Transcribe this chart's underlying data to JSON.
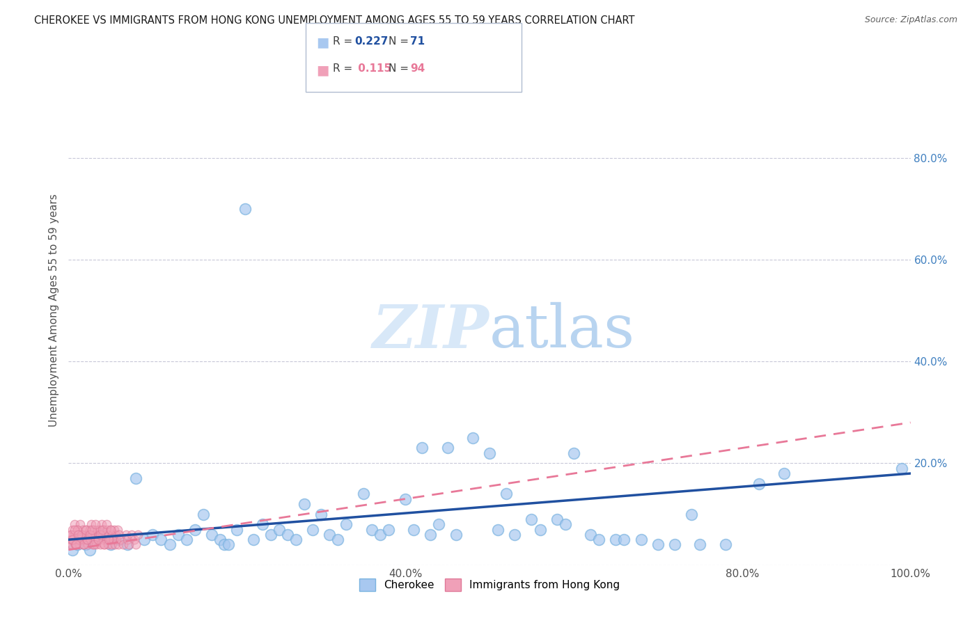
{
  "title": "CHEROKEE VS IMMIGRANTS FROM HONG KONG UNEMPLOYMENT AMONG AGES 55 TO 59 YEARS CORRELATION CHART",
  "source": "Source: ZipAtlas.com",
  "ylabel": "Unemployment Among Ages 55 to 59 years",
  "xlim": [
    0.0,
    1.0
  ],
  "ylim": [
    0.0,
    1.0
  ],
  "xticks": [
    0.0,
    0.2,
    0.4,
    0.6,
    0.8,
    1.0
  ],
  "xticklabels": [
    "0.0%",
    "",
    "40.0%",
    "",
    "80.0%",
    "100.0%"
  ],
  "yticks_right": [
    0.0,
    0.2,
    0.4,
    0.6,
    0.8
  ],
  "yticklabels_right": [
    "",
    "20.0%",
    "40.0%",
    "60.0%",
    "80.0%"
  ],
  "cherokee_color": "#a8c8f0",
  "cherokee_edge_color": "#7ab3e0",
  "hk_color": "#f0a0b8",
  "hk_edge_color": "#e07898",
  "cherokee_line_color": "#2050a0",
  "hk_line_color": "#e87898",
  "right_tick_color": "#4080c0",
  "axis_color": "#505050",
  "grid_color": "#c8c8d8",
  "watermark_color": "#d8e8f8",
  "cherokee_R": "0.227",
  "cherokee_N": "71",
  "hk_R": "0.115",
  "hk_N": "94",
  "cherokee_x": [
    0.005,
    0.01,
    0.015,
    0.02,
    0.025,
    0.03,
    0.04,
    0.05,
    0.06,
    0.07,
    0.08,
    0.09,
    0.1,
    0.11,
    0.12,
    0.13,
    0.14,
    0.15,
    0.16,
    0.17,
    0.18,
    0.185,
    0.19,
    0.2,
    0.21,
    0.22,
    0.23,
    0.24,
    0.25,
    0.26,
    0.27,
    0.28,
    0.29,
    0.3,
    0.31,
    0.32,
    0.33,
    0.35,
    0.36,
    0.37,
    0.38,
    0.4,
    0.41,
    0.42,
    0.43,
    0.44,
    0.45,
    0.46,
    0.48,
    0.5,
    0.51,
    0.52,
    0.53,
    0.55,
    0.56,
    0.58,
    0.59,
    0.6,
    0.62,
    0.63,
    0.65,
    0.66,
    0.68,
    0.7,
    0.72,
    0.74,
    0.75,
    0.78,
    0.82,
    0.85,
    0.99
  ],
  "cherokee_y": [
    0.03,
    0.04,
    0.05,
    0.04,
    0.03,
    0.05,
    0.06,
    0.04,
    0.05,
    0.04,
    0.17,
    0.05,
    0.06,
    0.05,
    0.04,
    0.06,
    0.05,
    0.07,
    0.1,
    0.06,
    0.05,
    0.04,
    0.04,
    0.07,
    0.7,
    0.05,
    0.08,
    0.06,
    0.07,
    0.06,
    0.05,
    0.12,
    0.07,
    0.1,
    0.06,
    0.05,
    0.08,
    0.14,
    0.07,
    0.06,
    0.07,
    0.13,
    0.07,
    0.23,
    0.06,
    0.08,
    0.23,
    0.06,
    0.25,
    0.22,
    0.07,
    0.14,
    0.06,
    0.09,
    0.07,
    0.09,
    0.08,
    0.22,
    0.06,
    0.05,
    0.05,
    0.05,
    0.05,
    0.04,
    0.04,
    0.1,
    0.04,
    0.04,
    0.16,
    0.18,
    0.19
  ],
  "hk_x": [
    0.001,
    0.002,
    0.003,
    0.004,
    0.005,
    0.006,
    0.007,
    0.008,
    0.009,
    0.01,
    0.011,
    0.012,
    0.013,
    0.014,
    0.015,
    0.016,
    0.017,
    0.018,
    0.019,
    0.02,
    0.021,
    0.022,
    0.023,
    0.024,
    0.025,
    0.026,
    0.027,
    0.028,
    0.029,
    0.03,
    0.031,
    0.032,
    0.033,
    0.034,
    0.035,
    0.036,
    0.037,
    0.038,
    0.039,
    0.04,
    0.041,
    0.042,
    0.043,
    0.044,
    0.045,
    0.046,
    0.047,
    0.048,
    0.049,
    0.05,
    0.051,
    0.052,
    0.053,
    0.054,
    0.055,
    0.056,
    0.057,
    0.058,
    0.059,
    0.06,
    0.062,
    0.065,
    0.068,
    0.07,
    0.072,
    0.075,
    0.078,
    0.08,
    0.082,
    0.004,
    0.006,
    0.008,
    0.01,
    0.012,
    0.015,
    0.018,
    0.02,
    0.022,
    0.025,
    0.028,
    0.03,
    0.032,
    0.035,
    0.038,
    0.04,
    0.042,
    0.045,
    0.048,
    0.05,
    0.003,
    0.005,
    0.007,
    0.009,
    0.011
  ],
  "hk_y": [
    0.04,
    0.05,
    0.06,
    0.04,
    0.07,
    0.05,
    0.08,
    0.06,
    0.04,
    0.07,
    0.05,
    0.06,
    0.04,
    0.08,
    0.05,
    0.06,
    0.07,
    0.04,
    0.05,
    0.06,
    0.07,
    0.05,
    0.04,
    0.06,
    0.07,
    0.05,
    0.08,
    0.06,
    0.04,
    0.07,
    0.05,
    0.06,
    0.04,
    0.07,
    0.05,
    0.06,
    0.07,
    0.04,
    0.08,
    0.06,
    0.05,
    0.07,
    0.04,
    0.06,
    0.05,
    0.07,
    0.04,
    0.06,
    0.05,
    0.07,
    0.04,
    0.06,
    0.05,
    0.07,
    0.04,
    0.06,
    0.05,
    0.07,
    0.04,
    0.06,
    0.05,
    0.04,
    0.06,
    0.05,
    0.04,
    0.06,
    0.05,
    0.04,
    0.06,
    0.05,
    0.06,
    0.04,
    0.07,
    0.05,
    0.06,
    0.04,
    0.07,
    0.05,
    0.06,
    0.07,
    0.04,
    0.08,
    0.05,
    0.06,
    0.07,
    0.04,
    0.08,
    0.05,
    0.07,
    0.06,
    0.05,
    0.07,
    0.04,
    0.06
  ],
  "cherokee_trend": [
    0.05,
    0.18
  ],
  "hk_trend": [
    0.03,
    0.28
  ],
  "title_fontsize": 10.5,
  "source_fontsize": 9,
  "axis_fontsize": 11,
  "ylabel_fontsize": 11
}
